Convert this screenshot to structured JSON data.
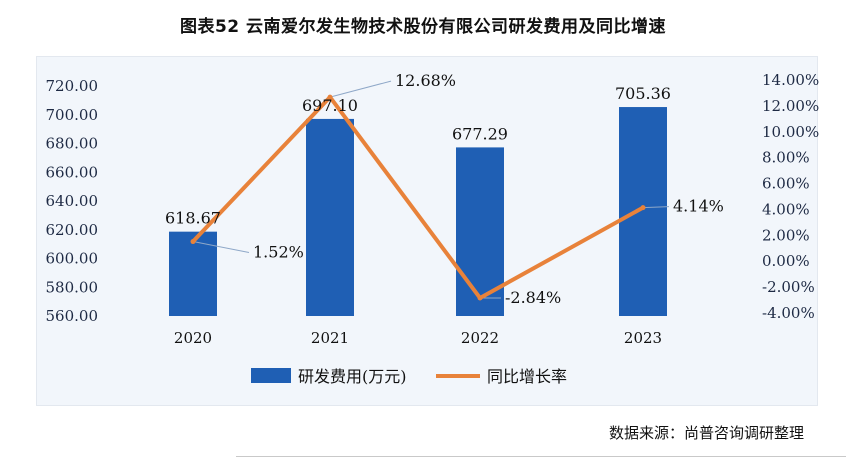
{
  "title": "图表52  云南爱尔发生物技术股份有限公司研发费用及同比增速",
  "source": "数据来源：尚普咨询调研整理",
  "chart_data": {
    "type": "bar",
    "categories": [
      "2020",
      "2021",
      "2022",
      "2023"
    ],
    "series": [
      {
        "name": "研发费用(万元)",
        "type": "bar",
        "axis": "left",
        "color": "#1f5fb4",
        "values": [
          618.67,
          697.1,
          677.29,
          705.36
        ],
        "labels": [
          "618.67",
          "697.10",
          "677.29",
          "705.36"
        ]
      },
      {
        "name": "同比增长率",
        "type": "line",
        "axis": "right",
        "color": "#e8823a",
        "values": [
          1.52,
          12.68,
          -2.84,
          4.14
        ],
        "labels": [
          "1.52%",
          "12.68%",
          "-2.84%",
          "4.14%"
        ]
      }
    ],
    "left_axis": {
      "ylim": [
        560,
        720
      ],
      "ticks": [
        "560.00",
        "580.00",
        "600.00",
        "620.00",
        "640.00",
        "660.00",
        "680.00",
        "700.00",
        "720.00"
      ],
      "values": [
        560,
        580,
        600,
        620,
        640,
        660,
        680,
        700,
        720
      ]
    },
    "right_axis": {
      "ylim": [
        -4,
        14
      ],
      "ticks": [
        "-4.00%",
        "-2.00%",
        "0.00%",
        "2.00%",
        "4.00%",
        "6.00%",
        "8.00%",
        "10.00%",
        "12.00%",
        "14.00%"
      ],
      "values": [
        -4,
        -2,
        0,
        2,
        4,
        6,
        8,
        10,
        12,
        14
      ]
    },
    "legend": {
      "position": "bottom",
      "items": [
        "研发费用(万元)",
        "同比增长率"
      ]
    },
    "grid": false
  }
}
